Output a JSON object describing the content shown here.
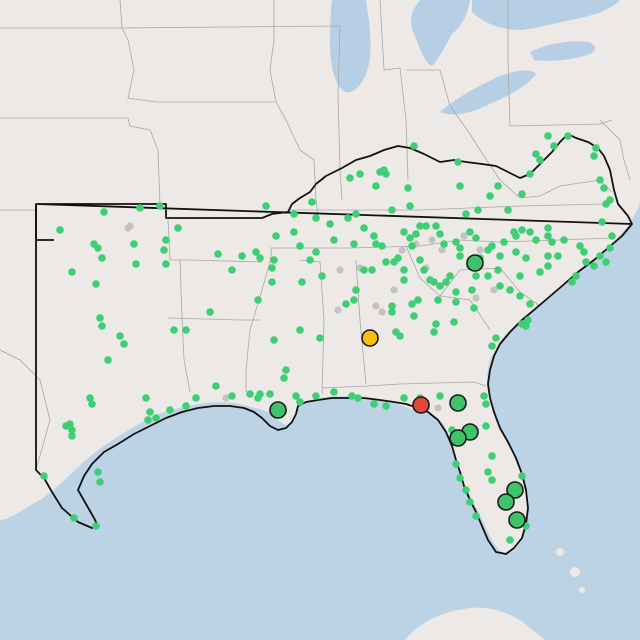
{
  "map": {
    "colors": {
      "land": "#ece9e6",
      "water": "#bcd3e6",
      "lakes": "#b7cfe4",
      "state_border": "#a9a7a5",
      "region_border": "#111111",
      "dot_green": "#3ecf74",
      "dot_gray": "#c3c3c3",
      "marker_green": "#3dc46a",
      "marker_yellow": "#f4c20d",
      "marker_red": "#e8463a",
      "marker_stroke": "#1a1a1a"
    },
    "legend": null,
    "major_markers": [
      {
        "id": "central-alabama",
        "status": "yellow"
      },
      {
        "id": "florida-panhandle",
        "status": "red"
      },
      {
        "id": "new-orleans",
        "status": "green"
      },
      {
        "id": "western-north-carolina",
        "status": "green"
      },
      {
        "id": "jacksonville",
        "status": "green"
      },
      {
        "id": "gainesville",
        "status": "green"
      },
      {
        "id": "ocala",
        "status": "green"
      },
      {
        "id": "west-palm-beach",
        "status": "green"
      },
      {
        "id": "fort-lauderdale",
        "status": "green"
      },
      {
        "id": "miami",
        "status": "green"
      }
    ],
    "minor_site_count": 230
  }
}
